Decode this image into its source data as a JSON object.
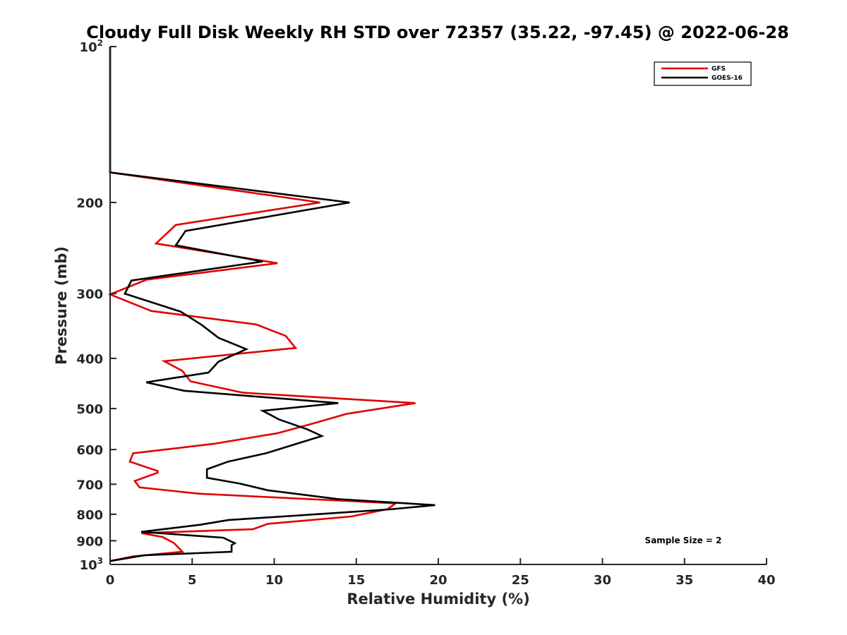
{
  "chart_data": {
    "type": "line",
    "title": "Cloudy Full Disk Weekly RH STD over 72357 (35.22, -97.45) @ 2022-06-28",
    "xlabel": "Relative Humidity (%)",
    "ylabel": "Pressure (mb)",
    "xlim": [
      0,
      40
    ],
    "ylim": [
      100,
      1000
    ],
    "y_scale": "log",
    "y_reversed": true,
    "x_ticks": [
      "0",
      "5",
      "10",
      "15",
      "20",
      "25",
      "30",
      "35",
      "40"
    ],
    "y_ticks": [
      {
        "value": 100,
        "base": "10",
        "exp": "2"
      },
      {
        "value": 200,
        "label": "200"
      },
      {
        "value": 300,
        "label": "300"
      },
      {
        "value": 400,
        "label": "400"
      },
      {
        "value": 500,
        "label": "500"
      },
      {
        "value": 600,
        "label": "600"
      },
      {
        "value": 700,
        "label": "700"
      },
      {
        "value": 800,
        "label": "800"
      },
      {
        "value": 900,
        "label": "900"
      },
      {
        "value": 1000,
        "base": "10",
        "exp": "3"
      }
    ],
    "legend_position": "top-right",
    "grid": false,
    "annotation": "Sample Size = 2",
    "series": [
      {
        "name": "GFS",
        "color": "#e00000",
        "points": [
          [
            0,
            100
          ],
          [
            0,
            175
          ],
          [
            12.8,
            200
          ],
          [
            4.0,
            221
          ],
          [
            2.8,
            240
          ],
          [
            10.2,
            262
          ],
          [
            2.2,
            282
          ],
          [
            0,
            301
          ],
          [
            2.5,
            324
          ],
          [
            8.9,
            344
          ],
          [
            10.7,
            362
          ],
          [
            11.3,
            382
          ],
          [
            3.3,
            405
          ],
          [
            4.4,
            423
          ],
          [
            4.9,
            443
          ],
          [
            8.1,
            466
          ],
          [
            18.6,
            488
          ],
          [
            14.4,
            512
          ],
          [
            12.3,
            535
          ],
          [
            10.2,
            558
          ],
          [
            6.3,
            585
          ],
          [
            1.4,
            610
          ],
          [
            1.2,
            633
          ],
          [
            2.9,
            660
          ],
          [
            2.9,
            665
          ],
          [
            1.5,
            690
          ],
          [
            1.8,
            710
          ],
          [
            5.4,
            730
          ],
          [
            17.4,
            762
          ],
          [
            16.9,
            782
          ],
          [
            14.7,
            808
          ],
          [
            9.6,
            835
          ],
          [
            8.7,
            855
          ],
          [
            1.9,
            870
          ],
          [
            3.2,
            885
          ],
          [
            3.9,
            910
          ],
          [
            4.4,
            945
          ],
          [
            1.4,
            965
          ],
          [
            0,
            985
          ]
        ]
      },
      {
        "name": "GOES-16",
        "color": "#000000",
        "points": [
          [
            0,
            100
          ],
          [
            0,
            175
          ],
          [
            14.6,
            200
          ],
          [
            4.6,
            227
          ],
          [
            4.0,
            242
          ],
          [
            9.3,
            260
          ],
          [
            1.3,
            283
          ],
          [
            0.9,
            300
          ],
          [
            4.3,
            325
          ],
          [
            5.6,
            345
          ],
          [
            6.6,
            365
          ],
          [
            8.3,
            384
          ],
          [
            6.6,
            406
          ],
          [
            6.0,
            426
          ],
          [
            2.2,
            445
          ],
          [
            4.5,
            462
          ],
          [
            13.9,
            488
          ],
          [
            9.3,
            505
          ],
          [
            10.3,
            525
          ],
          [
            12.0,
            548
          ],
          [
            12.9,
            565
          ],
          [
            11.5,
            583
          ],
          [
            9.5,
            610
          ],
          [
            7.2,
            633
          ],
          [
            5.9,
            655
          ],
          [
            5.9,
            680
          ],
          [
            7.9,
            698
          ],
          [
            9.6,
            719
          ],
          [
            13.9,
            748
          ],
          [
            19.8,
            768
          ],
          [
            17.0,
            783
          ],
          [
            7.2,
            821
          ],
          [
            5.5,
            838
          ],
          [
            1.9,
            865
          ],
          [
            6.9,
            888
          ],
          [
            7.6,
            910
          ],
          [
            7.4,
            918
          ],
          [
            7.4,
            945
          ],
          [
            2.1,
            960
          ],
          [
            0,
            985
          ]
        ]
      }
    ]
  }
}
